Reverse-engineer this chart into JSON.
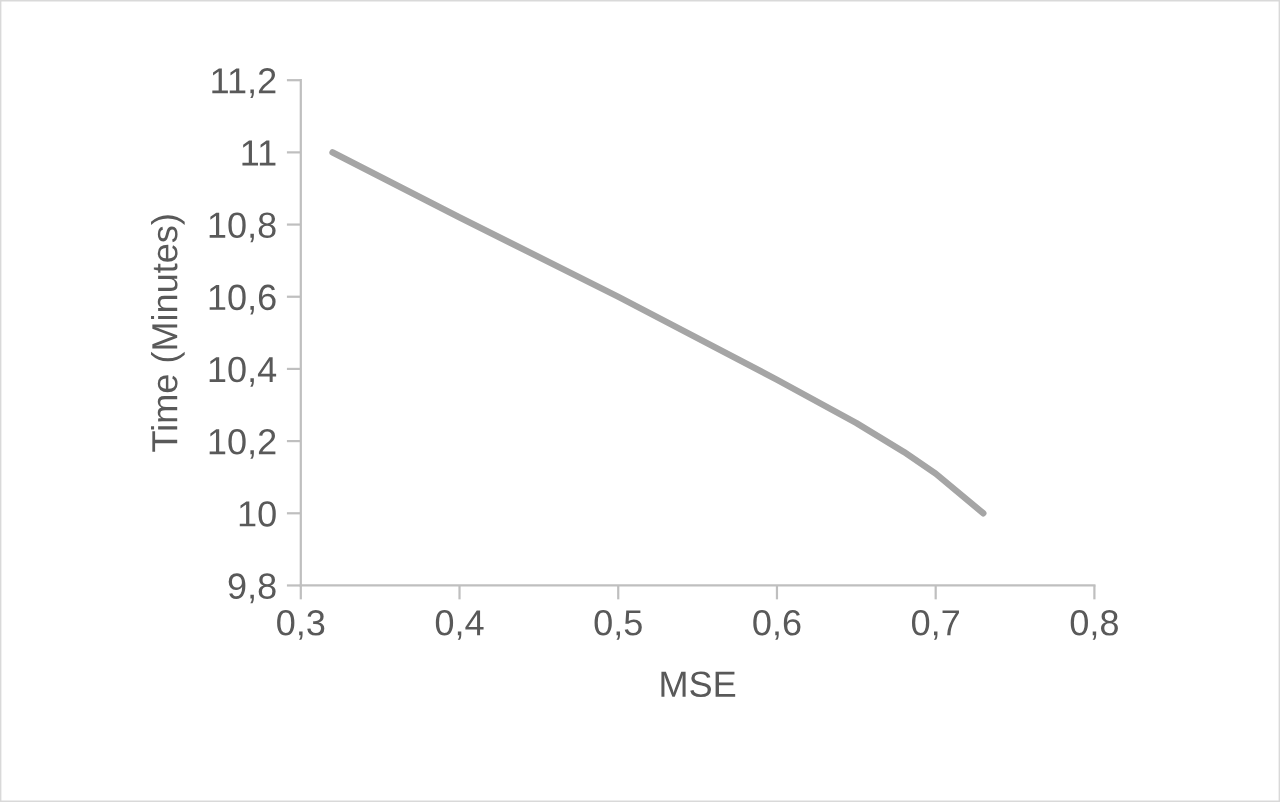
{
  "chart_data": {
    "type": "line",
    "xlabel": "MSE",
    "ylabel": "Time (Minutes)",
    "x": [
      0.32,
      0.4,
      0.5,
      0.6,
      0.65,
      0.68,
      0.7,
      0.73
    ],
    "series": [
      {
        "color": "#a5a5a5",
        "values": [
          11,
          10.82,
          10.6,
          10.37,
          10.25,
          10.17,
          10.11,
          10
        ]
      }
    ],
    "xlim": [
      0.3,
      0.8
    ],
    "ylim": [
      9.8,
      11.2
    ],
    "xticks": [
      {
        "value": 0.3,
        "label": "0,3"
      },
      {
        "value": 0.4,
        "label": "0,4"
      },
      {
        "value": 0.5,
        "label": "0,5"
      },
      {
        "value": 0.6,
        "label": "0,6"
      },
      {
        "value": 0.7,
        "label": "0,7"
      },
      {
        "value": 0.8,
        "label": "0,8"
      }
    ],
    "yticks": [
      {
        "value": 9.8,
        "label": "9,8"
      },
      10,
      {
        "value": 10.2,
        "label": "10,2"
      },
      {
        "value": 10.4,
        "label": "10,4"
      },
      {
        "value": 10.6,
        "label": "10,6"
      },
      {
        "value": 10.8,
        "label": "10,8"
      },
      11,
      {
        "value": 11.2,
        "label": "11,2"
      }
    ],
    "grid": false,
    "legend": false,
    "marker": "none",
    "line_style": "solid"
  }
}
